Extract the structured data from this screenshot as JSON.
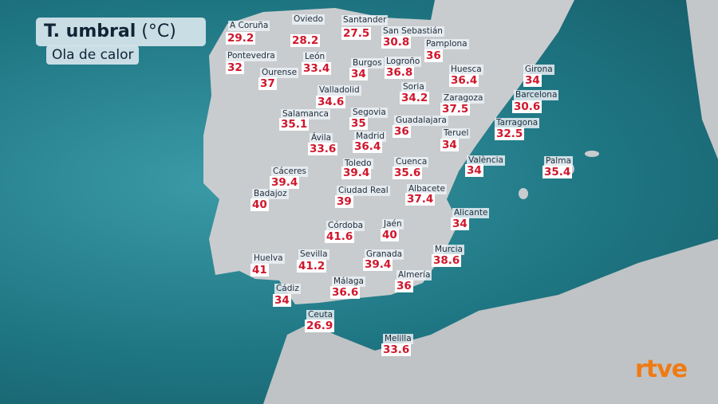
{
  "title": "T. umbral",
  "unit": "(°C)",
  "subtitle": "Ola de calor",
  "logo": "rtve",
  "cities": [
    {
      "name": "A Coruña",
      "value": 29.2
    },
    {
      "name": "Oviedo",
      "value": 28.2
    },
    {
      "name": "Santander",
      "value": 27.5
    },
    {
      "name": "San Sebastián",
      "value": 30.8
    },
    {
      "name": "Pamplona",
      "value": 36
    },
    {
      "name": "Pontevedra",
      "value": 32
    },
    {
      "name": "León",
      "value": 33.4
    },
    {
      "name": "Ourense",
      "value": 37
    },
    {
      "name": "Burgos",
      "value": 34
    },
    {
      "name": "Logroño",
      "value": 36.8
    },
    {
      "name": "Huesca",
      "value": 36.4
    },
    {
      "name": "Girona",
      "value": 34
    },
    {
      "name": "Valladolid",
      "value": 34.6
    },
    {
      "name": "Soria",
      "value": 34.2
    },
    {
      "name": "Zaragoza",
      "value": 37.5
    },
    {
      "name": "Barcelona",
      "value": 30.6
    },
    {
      "name": "Salamanca",
      "value": 35.1
    },
    {
      "name": "Segovia",
      "value": 35
    },
    {
      "name": "Guadalajara",
      "value": 36
    },
    {
      "name": "Tarragona",
      "value": 32.5
    },
    {
      "name": "Ávila",
      "value": 33.6
    },
    {
      "name": "Madrid",
      "value": 36.4
    },
    {
      "name": "Teruel",
      "value": 34
    },
    {
      "name": "Toledo",
      "value": 39.4
    },
    {
      "name": "Cuenca",
      "value": 35.6
    },
    {
      "name": "València",
      "value": 34
    },
    {
      "name": "Palma",
      "value": 35.4
    },
    {
      "name": "Cáceres",
      "value": 39.4
    },
    {
      "name": "Badajoz",
      "value": 40
    },
    {
      "name": "Ciudad Real",
      "value": 39
    },
    {
      "name": "Albacete",
      "value": 37.4
    },
    {
      "name": "Alicante",
      "value": 34
    },
    {
      "name": "Córdoba",
      "value": 41.6
    },
    {
      "name": "Jaén",
      "value": 40
    },
    {
      "name": "Huelva",
      "value": 41
    },
    {
      "name": "Sevilla",
      "value": 41.2
    },
    {
      "name": "Granada",
      "value": 39.4
    },
    {
      "name": "Murcia",
      "value": 38.6
    },
    {
      "name": "Almería",
      "value": 36
    },
    {
      "name": "Málaga",
      "value": 36.6
    },
    {
      "name": "Cádiz",
      "value": 34
    },
    {
      "name": "Ceuta",
      "value": 26.9
    },
    {
      "name": "Melilla",
      "value": 33.6
    }
  ]
}
